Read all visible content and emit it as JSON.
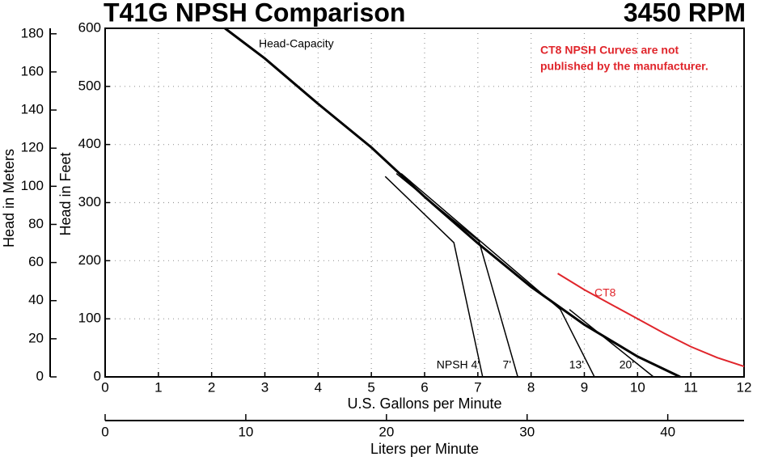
{
  "chart_data": {
    "type": "line",
    "title": "T41G NPSH Comparison",
    "subtitle": "3450 RPM",
    "xlabel": "U.S. Gallons per Minute",
    "ylabel": "Head in Feet",
    "y2label": "Head in Meters",
    "x2label": "Liters per Minute",
    "xlim": [
      0,
      12
    ],
    "xticks": [
      0,
      1,
      2,
      3,
      4,
      5,
      6,
      7,
      8,
      9,
      10,
      11,
      12
    ],
    "ylim": [
      0,
      600
    ],
    "yticks": [
      0,
      100,
      200,
      300,
      400,
      500,
      600
    ],
    "y2lim": [
      0,
      182.88
    ],
    "y2ticks": [
      0,
      20,
      40,
      60,
      80,
      100,
      120,
      140,
      160,
      180
    ],
    "x2lim": [
      0,
      45.425
    ],
    "x2ticks": [
      0,
      10,
      20,
      30,
      40
    ],
    "grid": true,
    "annotation": [
      "CT8 NPSH Curves are not",
      "published by the manufacturer."
    ],
    "annotation_color": "#e0252b",
    "series": [
      {
        "name": "Head-Capacity",
        "color": "#000000",
        "width": 3,
        "x": [
          2.25,
          3,
          4,
          5,
          6,
          7,
          8,
          9,
          10,
          10.8
        ],
        "values": [
          600,
          548,
          470,
          395,
          310,
          230,
          155,
          90,
          35,
          0
        ]
      },
      {
        "name": "CT8",
        "color": "#e0252b",
        "width": 2,
        "x": [
          8.5,
          9,
          9.5,
          10,
          10.5,
          11,
          11.5,
          12
        ],
        "values": [
          178,
          150,
          125,
          100,
          75,
          52,
          33,
          18
        ]
      },
      {
        "name": "NPSH 4'",
        "color": "#000000",
        "width": 1.5,
        "x": [
          5.26,
          6.55,
          7.09
        ],
        "values": [
          345,
          231,
          0
        ]
      },
      {
        "name": "7'",
        "color": "#000000",
        "width": 1.5,
        "x": [
          5.47,
          7.02,
          7.75
        ],
        "values": [
          350,
          234,
          0
        ]
      },
      {
        "name": "13'",
        "color": "#000000",
        "width": 1.5,
        "x": [
          5.56,
          8.55,
          9.19
        ],
        "values": [
          350,
          116,
          0
        ]
      },
      {
        "name": "20'",
        "color": "#000000",
        "width": 1.5,
        "x": [
          8.72,
          10.3
        ],
        "values": [
          116,
          0
        ]
      }
    ]
  }
}
